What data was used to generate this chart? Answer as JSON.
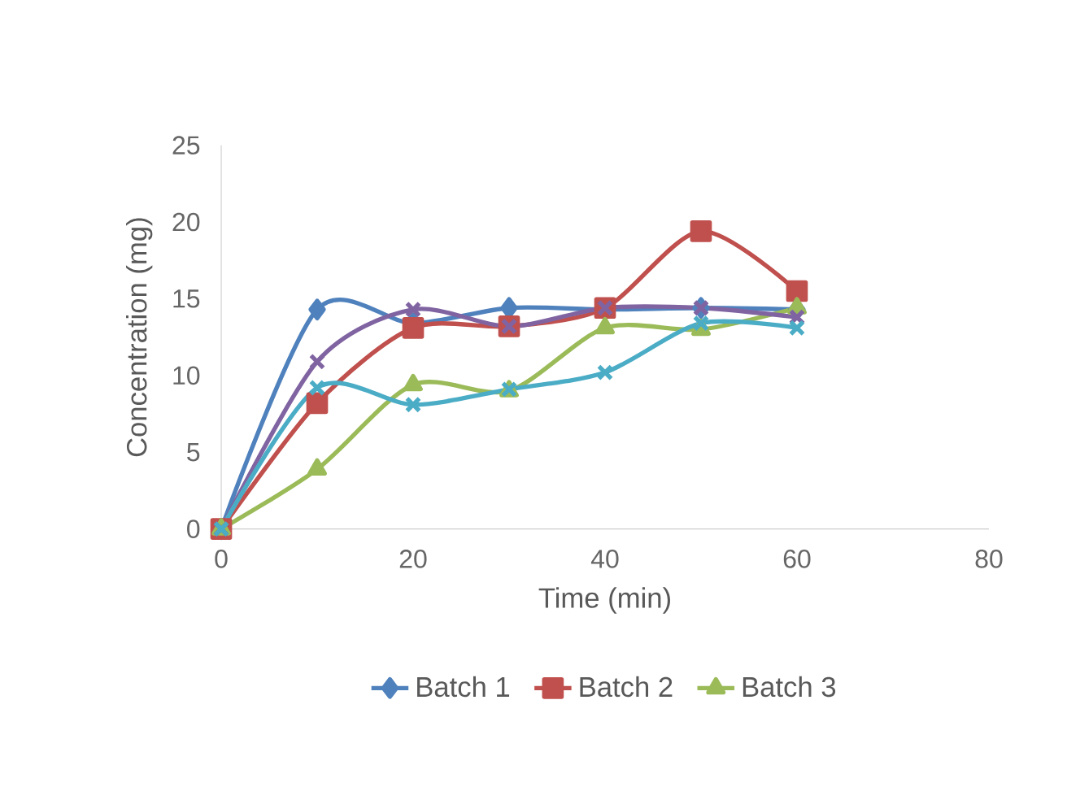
{
  "chart_data": {
    "type": "line",
    "xlabel": "Time (min)",
    "ylabel": "Concentration (mg)",
    "x": [
      0,
      10,
      20,
      30,
      40,
      50,
      60
    ],
    "series": [
      {
        "name": "Batch 1",
        "color": "#4f81bd",
        "marker": "diamond",
        "values": [
          0,
          14.3,
          13.4,
          14.4,
          14.3,
          14.4,
          14.3
        ]
      },
      {
        "name": "Batch 2",
        "color": "#c0504d",
        "marker": "square",
        "values": [
          0,
          8.2,
          13.1,
          13.2,
          14.4,
          19.4,
          15.5
        ]
      },
      {
        "name": "Batch 3",
        "color": "#9bbb59",
        "marker": "triangle",
        "values": [
          0,
          3.9,
          9.4,
          9.0,
          13.1,
          13.0,
          14.4
        ]
      },
      {
        "color": "#8064a2",
        "marker": "cross",
        "values": [
          0,
          10.9,
          14.3,
          13.2,
          14.4,
          14.4,
          13.8
        ]
      },
      {
        "color": "#4bacc6",
        "marker": "cross",
        "values": [
          0,
          9.2,
          8.1,
          9.1,
          10.2,
          13.4,
          13.1
        ]
      }
    ],
    "xlim": [
      0,
      80
    ],
    "xticks": [
      0,
      20,
      40,
      60,
      80
    ],
    "ylim": [
      0,
      25
    ],
    "yticks": [
      0,
      5,
      10,
      15,
      20,
      25
    ],
    "grid": false,
    "legend": "bottom",
    "line_style": "solid"
  }
}
